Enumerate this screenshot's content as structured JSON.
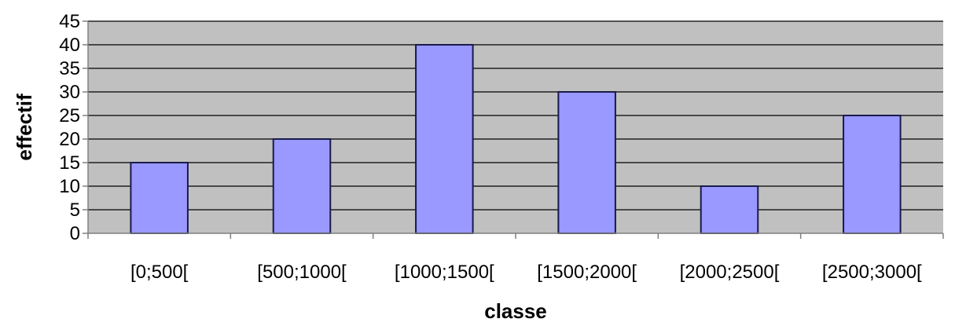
{
  "chart_data": {
    "type": "bar",
    "categories": [
      "[0;500[",
      "[500;1000[",
      "[1000;1500[",
      "[1500;2000[",
      "[2000;2500[",
      "[2500;3000["
    ],
    "values": [
      15,
      20,
      40,
      30,
      10,
      25
    ],
    "title": "",
    "xlabel": "classe",
    "ylabel": "effectif",
    "ylim": [
      0,
      45
    ],
    "yticks": [
      0,
      5,
      10,
      15,
      20,
      25,
      30,
      35,
      40,
      45
    ],
    "grid": true,
    "legend": "none",
    "colors": {
      "bar_fill": "#9999ff",
      "bar_stroke": "#1a1a4d",
      "plot_background": "#c0c0c0",
      "gridline": "#000000",
      "axis": "#808080"
    }
  }
}
